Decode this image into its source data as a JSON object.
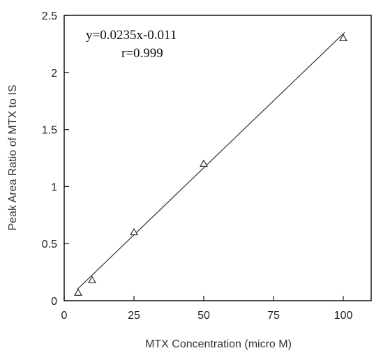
{
  "chart_data": {
    "type": "scatter",
    "title": "",
    "xlabel": "MTX Concentration (micro M)",
    "ylabel": "Peak Area Ratio of MTX to IS",
    "xlim": [
      0,
      110
    ],
    "ylim": [
      0,
      2.5
    ],
    "x_ticks": [
      "0",
      "25",
      "50",
      "75",
      "100"
    ],
    "y_ticks": [
      "0",
      "0.5",
      "1",
      "1.5",
      "2",
      "2.5"
    ],
    "grid": false,
    "marker": "triangle-open",
    "series": [
      {
        "x": [
          5,
          10,
          25,
          50,
          100
        ],
        "y": [
          0.07,
          0.18,
          0.6,
          1.2,
          2.3
        ]
      }
    ],
    "fit_line": {
      "slope": 0.0235,
      "intercept": -0.011,
      "x_range": [
        4.8,
        100.5
      ]
    },
    "annotations": {
      "equation": "y=0.0235x-0.011",
      "r": "r=0.999"
    }
  }
}
